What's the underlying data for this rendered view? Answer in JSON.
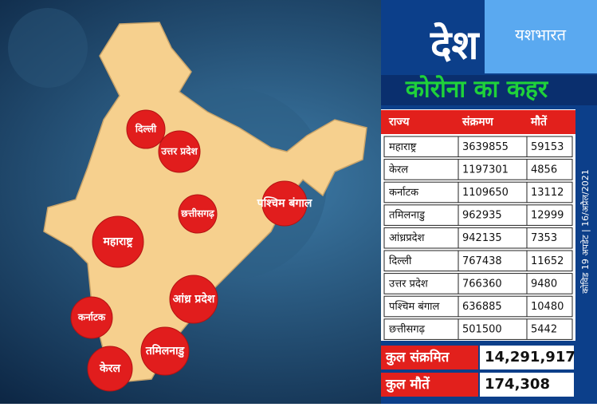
{
  "header": {
    "title": "देश",
    "subtitle": "कोरोना का कहर",
    "brand": "यशभारत"
  },
  "side_note": "कोविड 19 अपडेट | 16/अप्रैल/2021",
  "table": {
    "columns": [
      "राज्य",
      "संक्रमण",
      "मौतें"
    ],
    "rows": [
      [
        "महाराष्ट्र",
        "3639855",
        "59153"
      ],
      [
        "केरल",
        "1197301",
        "4856"
      ],
      [
        "कर्नाटक",
        "1109650",
        "13112"
      ],
      [
        "तमिलनाडु",
        "962935",
        "12999"
      ],
      [
        "आंध्रप्रदेश",
        "942135",
        "7353"
      ],
      [
        "दिल्ली",
        "767438",
        "11652"
      ],
      [
        "उत्तर प्रदेश",
        "766360",
        "9480"
      ],
      [
        "पश्चिम बंगाल",
        "636885",
        "10480"
      ],
      [
        "छत्तीसगढ़",
        "501500",
        "5442"
      ]
    ]
  },
  "totals": [
    {
      "label": "कुल संक्रमित",
      "value": "14,291,917"
    },
    {
      "label": "कुल मौतें",
      "value": "174,308"
    }
  ],
  "map": {
    "labels": [
      "दिल्ली",
      "उत्तर प्रदेश",
      "पश्चिम बंगाल",
      "छत्तीसगढ़",
      "महाराष्ट्र",
      "आंध्र प्रदेश",
      "कर्नाटक",
      "तमिलनाडु",
      "केरल"
    ]
  }
}
